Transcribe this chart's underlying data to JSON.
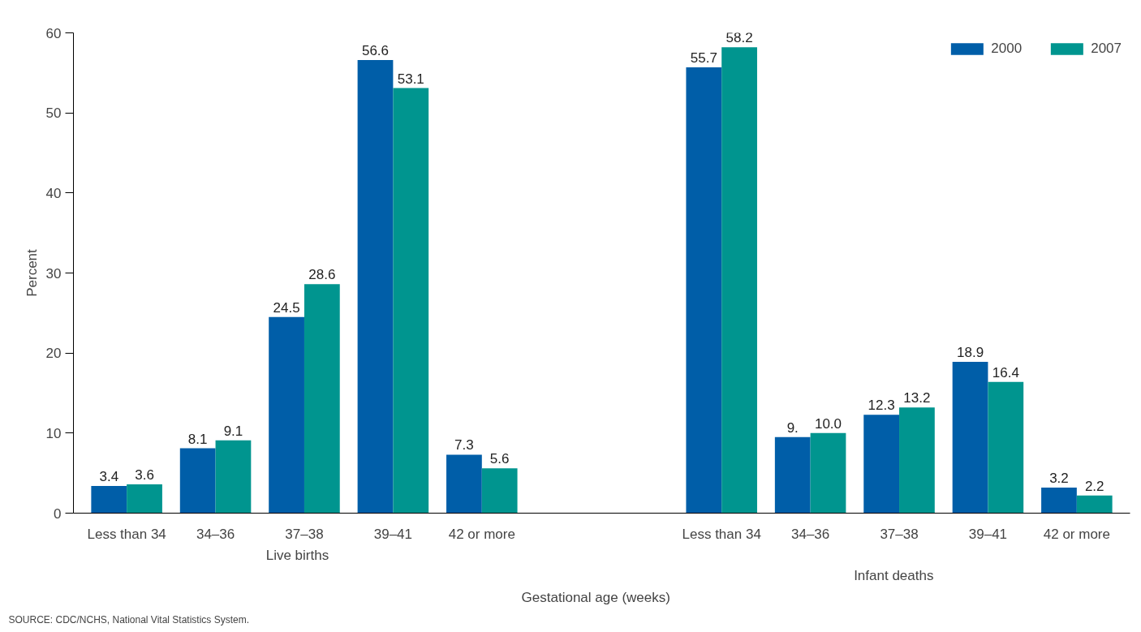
{
  "chart_data": {
    "type": "bar",
    "xlabel": "Gestational age (weeks)",
    "ylabel": "Percent",
    "categories": [
      "Less than 34",
      "34–36",
      "37–38",
      "39–41",
      "42 or more",
      "Less than 34",
      "34–36",
      "37–38",
      "39–41",
      "42 or more"
    ],
    "series": [
      {
        "name": "2000",
        "color": "#005ea8",
        "values": [
          3.4,
          8.1,
          24.5,
          56.6,
          7.3,
          55.7,
          9.5,
          12.3,
          18.9,
          3.2
        ],
        "value_labels": [
          "3.4",
          "8.1",
          "24.5",
          "56.6",
          "7.3",
          "55.7",
          "9.",
          "12.3",
          "18.9",
          "3.2"
        ]
      },
      {
        "name": "2007",
        "color": "#00958f",
        "values": [
          3.6,
          9.1,
          28.6,
          53.1,
          5.6,
          58.2,
          10.0,
          13.2,
          16.4,
          2.2
        ],
        "value_labels": [
          "3.6",
          "9.1",
          "28.6",
          "53.1",
          "5.6",
          "58.2",
          "10.0",
          "13.2",
          "16.4",
          "2.2"
        ]
      }
    ],
    "ylim": [
      0,
      60
    ],
    "yticks": [
      0,
      10,
      20,
      30,
      40,
      50,
      60
    ],
    "grid": false,
    "legend": "top right",
    "annotations": [
      "Live births",
      "Infant deaths",
      "SOURCE: CDC/NCHS, National Vital Statistics System."
    ]
  }
}
